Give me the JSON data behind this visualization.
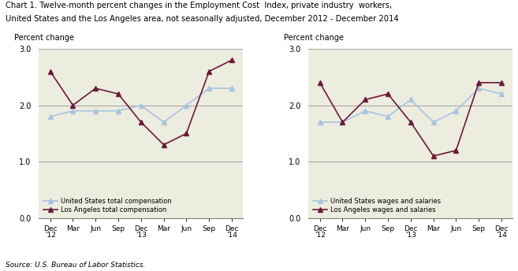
{
  "title_line1": "Chart 1. Twelve-month percent changes in the Employment Cost  Index, private industry  workers,",
  "title_line2": "United States and the Los Angeles area, not seasonally adjusted, December 2012 - December 2014",
  "ylabel": "Percent change",
  "x_tick_labels": [
    "Dec\n'12",
    "Mar",
    "Jun",
    "Sep",
    "Dec\n'13",
    "Mar",
    "Jun",
    "Sep",
    "Dec\n'14"
  ],
  "ylim": [
    0.0,
    3.0
  ],
  "yticks": [
    0.0,
    1.0,
    2.0,
    3.0
  ],
  "chart1": {
    "us_total": [
      1.8,
      1.9,
      1.9,
      1.9,
      2.0,
      1.7,
      2.0,
      2.3,
      2.3
    ],
    "la_total": [
      2.6,
      2.0,
      2.3,
      2.2,
      1.7,
      1.3,
      1.5,
      2.6,
      2.8
    ],
    "us_label": "United States total compensation",
    "la_label": "Los Angeles total compensation"
  },
  "chart2": {
    "us_wages": [
      1.7,
      1.7,
      1.9,
      1.8,
      2.1,
      1.7,
      1.9,
      2.3,
      2.2
    ],
    "la_wages": [
      2.4,
      1.7,
      2.1,
      2.2,
      1.7,
      1.1,
      1.2,
      2.4,
      2.4
    ],
    "us_label": "United States wages and salaries",
    "la_label": "Los Angeles wages and salaries"
  },
  "us_color": "#a8c4de",
  "la_color": "#6b1a3a",
  "source": "Source: U.S. Bureau of Labor Statistics.",
  "grid_color": "#a0a0a0",
  "bg_color": "#ececdf"
}
